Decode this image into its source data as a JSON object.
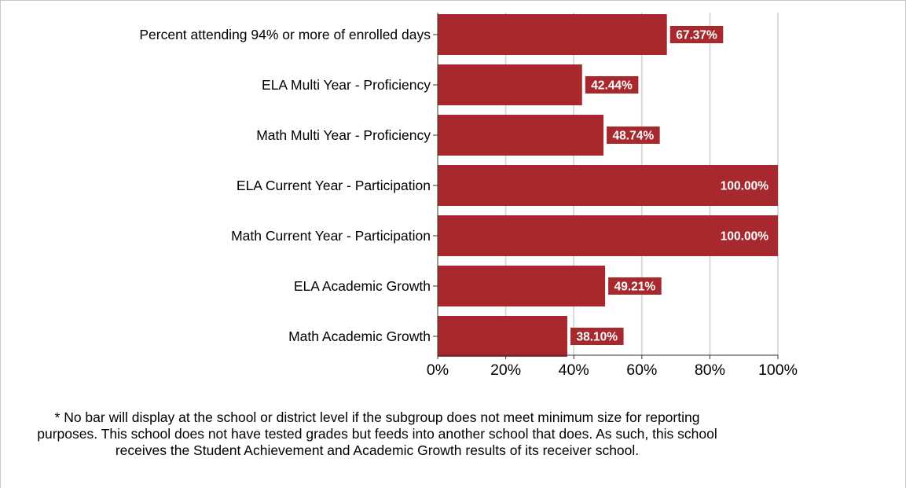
{
  "chart_data": {
    "type": "bar",
    "orientation": "horizontal",
    "categories": [
      "Percent attending 94% or more of enrolled days",
      "ELA Multi Year - Proficiency",
      "Math Multi Year - Proficiency",
      "ELA Current Year - Participation",
      "Math Current Year - Participation",
      "ELA Academic Growth",
      "Math Academic Growth"
    ],
    "values": [
      67.37,
      42.44,
      48.74,
      100.0,
      100.0,
      49.21,
      38.1
    ],
    "data_labels": [
      "67.37%",
      "42.44%",
      "48.74%",
      "100.00%",
      "100.00%",
      "49.21%",
      "38.10%"
    ],
    "xlim": [
      0,
      100
    ],
    "xticks": [
      0,
      20,
      40,
      60,
      80,
      100
    ],
    "xtick_labels": [
      "0%",
      "20%",
      "40%",
      "60%",
      "80%",
      "100%"
    ],
    "grid": "vertical",
    "bar_color": "#a8292d"
  },
  "footnote": "* No bar will display at the school or district level if the subgroup does not meet minimum size for reporting purposes. This school does not have tested grades but feeds into another school that does.  As such, this school receives the Student Achievement and Academic Growth results of its receiver school."
}
